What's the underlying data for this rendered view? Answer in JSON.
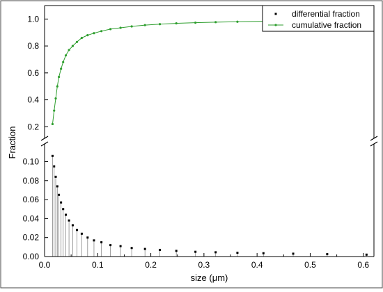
{
  "chart_data": {
    "type": "line",
    "xlabel": "size (μm)",
    "ylabel": "Fraction",
    "xlim": [
      0.0,
      0.62
    ],
    "x_ticks": [
      "0.0",
      "0.1",
      "0.2",
      "0.3",
      "0.4",
      "0.5",
      "0.6"
    ],
    "y_axis_break": true,
    "upper_ylim": [
      0.15,
      1.1
    ],
    "upper_y_ticks": [
      "0.2",
      "0.4",
      "0.6",
      "0.8",
      "1.0"
    ],
    "lower_ylim": [
      0.0,
      0.115
    ],
    "lower_y_ticks": [
      "0.00",
      "0.02",
      "0.04",
      "0.06",
      "0.08",
      "0.10"
    ],
    "grid": false,
    "legend_position": "top-right",
    "series": [
      {
        "name": "cumulative fraction",
        "style": "line+markers",
        "color": "#2e9e2e",
        "x": [
          0.015,
          0.018,
          0.021,
          0.024,
          0.027,
          0.031,
          0.035,
          0.04,
          0.046,
          0.053,
          0.061,
          0.07,
          0.081,
          0.093,
          0.107,
          0.124,
          0.143,
          0.164,
          0.189,
          0.217,
          0.248,
          0.284,
          0.322,
          0.363,
          0.412,
          0.468,
          0.532,
          0.606
        ],
        "values": [
          0.22,
          0.32,
          0.41,
          0.5,
          0.57,
          0.63,
          0.68,
          0.73,
          0.77,
          0.8,
          0.83,
          0.86,
          0.88,
          0.895,
          0.91,
          0.925,
          0.935,
          0.945,
          0.955,
          0.962,
          0.968,
          0.973,
          0.977,
          0.98,
          0.983,
          0.986,
          0.988,
          0.99
        ]
      },
      {
        "name": "differential fraction",
        "style": "drop-lines+markers",
        "color": "#000000",
        "x": [
          0.015,
          0.018,
          0.021,
          0.024,
          0.027,
          0.031,
          0.035,
          0.04,
          0.046,
          0.053,
          0.061,
          0.07,
          0.081,
          0.093,
          0.107,
          0.124,
          0.143,
          0.164,
          0.189,
          0.217,
          0.248,
          0.284,
          0.322,
          0.363,
          0.412,
          0.468,
          0.532,
          0.606
        ],
        "values": [
          0.106,
          0.095,
          0.084,
          0.074,
          0.065,
          0.057,
          0.05,
          0.044,
          0.038,
          0.033,
          0.028,
          0.024,
          0.02,
          0.017,
          0.015,
          0.012,
          0.011,
          0.009,
          0.008,
          0.007,
          0.006,
          0.005,
          0.0045,
          0.004,
          0.0035,
          0.003,
          0.0025,
          0.002
        ]
      }
    ]
  }
}
